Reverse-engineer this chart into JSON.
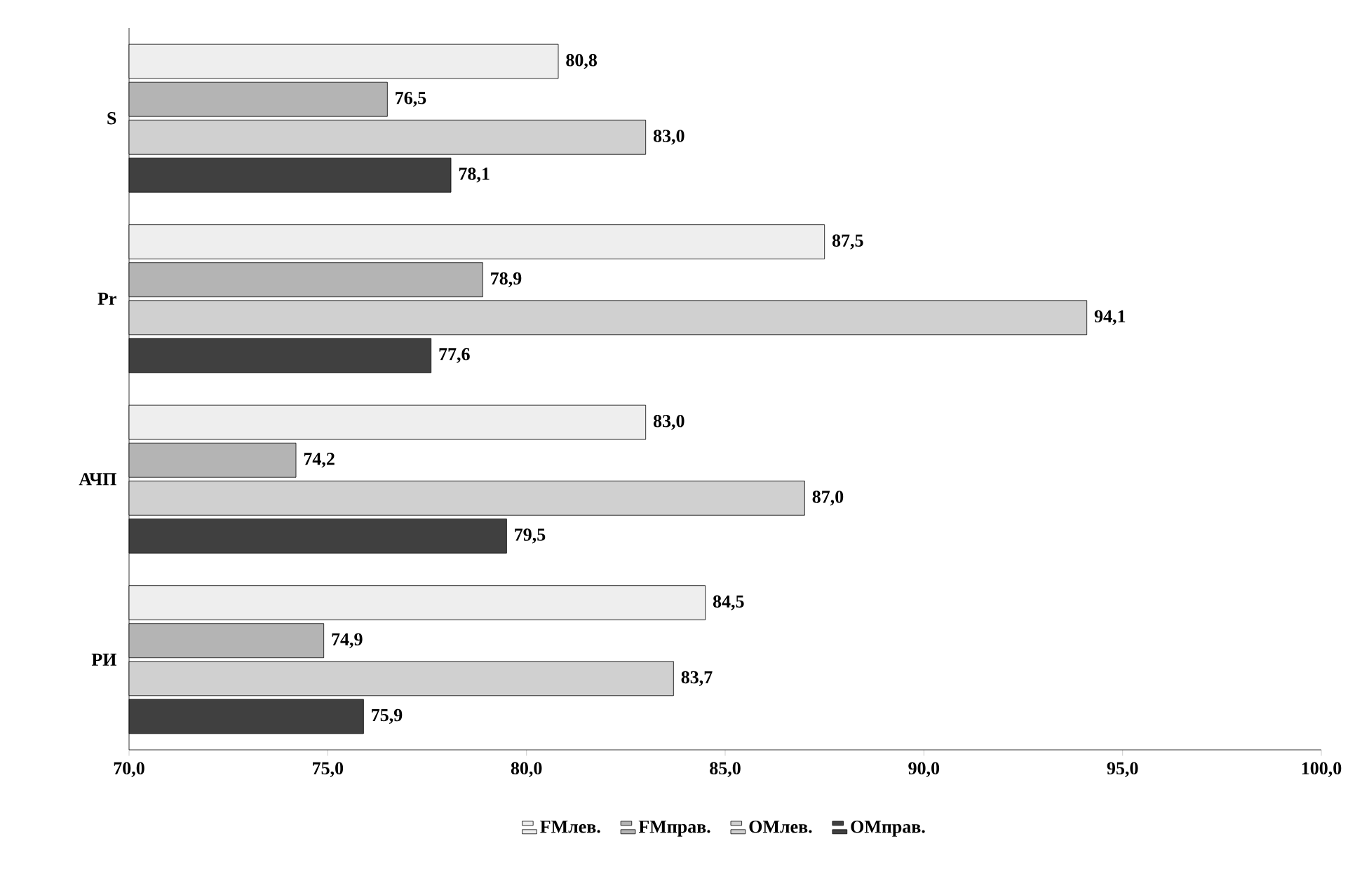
{
  "chart_data": {
    "type": "bar",
    "orientation": "horizontal",
    "categories": [
      "S",
      "Pr",
      "АЧП",
      "РИ"
    ],
    "series": [
      {
        "name": "FMлев.",
        "color": "#eeeeee",
        "values": [
          80.8,
          87.5,
          83.0,
          84.5
        ],
        "value_labels": [
          "80,8",
          "87,5",
          "83,0",
          "84,5"
        ]
      },
      {
        "name": "FMправ.",
        "color": "#b4b4b4",
        "values": [
          76.5,
          78.9,
          74.2,
          74.9
        ],
        "value_labels": [
          "76,5",
          "78,9",
          "74,2",
          "74,9"
        ]
      },
      {
        "name": "OMлев.",
        "color": "#d0d0d0",
        "values": [
          83.0,
          94.1,
          87.0,
          83.7
        ],
        "value_labels": [
          "83,0",
          "94,1",
          "87,0",
          "83,7"
        ]
      },
      {
        "name": "OMправ.",
        "color": "#404040",
        "values": [
          78.1,
          77.6,
          79.5,
          75.9
        ],
        "value_labels": [
          "78,1",
          "77,6",
          "79,5",
          "75,9"
        ]
      }
    ],
    "xlim": [
      70,
      100
    ],
    "xticks": [
      {
        "value": 70,
        "label": "70,0"
      },
      {
        "value": 75,
        "label": "75,0"
      },
      {
        "value": 80,
        "label": "80,0"
      },
      {
        "value": 85,
        "label": "85,0"
      },
      {
        "value": 90,
        "label": "90,0"
      },
      {
        "value": 95,
        "label": "95,0"
      },
      {
        "value": 100,
        "label": "100,0"
      }
    ],
    "legend": "bottom"
  }
}
